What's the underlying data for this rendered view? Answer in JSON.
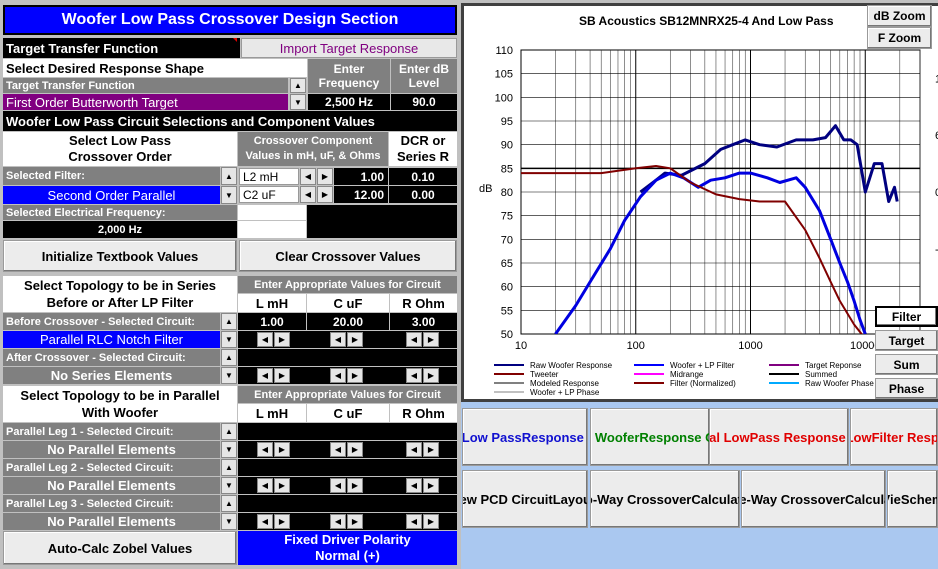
{
  "title": "Woofer Low Pass Crossover Design Section",
  "ttf_label": "Target Transfer Function",
  "import_btn": "Import Target Response",
  "shape_label": "Select Desired Response Shape",
  "enter_freq": [
    "Enter",
    "Frequency"
  ],
  "enter_db": [
    "Enter dB",
    "Level"
  ],
  "ttf_small": "Target Transfer Function",
  "target_name": "First Order Butterworth Target",
  "freq_value": "2,500 Hz",
  "db_value": "90.0",
  "circuit_section": "Woofer Low Pass Circuit Selections and Component Values",
  "lp_order": [
    "Select Low Pass",
    "Crossover Order"
  ],
  "comp_values": [
    "Crossover Component",
    "Values in mH, uF, & Ohms"
  ],
  "dcr": [
    "DCR or",
    "Series R"
  ],
  "selected_filter_label": "Selected Filter:",
  "filter_name": "Second Order Parallel",
  "components": [
    {
      "name": "L2 mH",
      "value": "1.00",
      "dcr": "0.10"
    },
    {
      "name": "C2 uF",
      "value": "12.00",
      "dcr": "0.00"
    }
  ],
  "elec_freq_label": "Selected Electrical Frequency:",
  "elec_freq": "2,000 Hz",
  "init_btn": "Initialize Textbook Values",
  "clear_btn": "Clear Crossover  Values",
  "topo_series": [
    "Select Topology to be in Series",
    "Before or After LP Filter"
  ],
  "enter_circuit": "Enter Appropriate Values for Circuit",
  "col_l": "L mH",
  "col_c": "C uF",
  "col_r": "R Ohm",
  "before_label": "Before Crossover - Selected Circuit:",
  "before_values": [
    "1.00",
    "20.00",
    "3.00"
  ],
  "before_circuit": "Parallel RLC Notch Filter",
  "after_label": "After Crossover - Selected Circuit:",
  "after_circuit": "No Series Elements",
  "topo_parallel": [
    "Select Topology to be in Parallel",
    "With Woofer"
  ],
  "enter_circuit2": "Enter Appropriate Values for Circuit",
  "legs": [
    {
      "label": "Parallel Leg 1 - Selected Circuit:",
      "value": "No Parallel Elements"
    },
    {
      "label": "Parallel Leg 2 - Selected Circuit:",
      "value": "No Parallel Elements"
    },
    {
      "label": "Parallel Leg 3 - Selected Circuit:",
      "value": "No Parallel Elements"
    }
  ],
  "zobel_btn": "Auto-Calc Zobel Values",
  "polarity": [
    "Fixed Driver Polarity",
    "Normal (+)"
  ],
  "chart_title": "SB Acoustics   SB12MNRX25-4   And  Low Pass",
  "db_zoom": "dB Zoom",
  "f_zoom": "F Zoom",
  "right_btns": [
    "Filter",
    "Target",
    "Sum",
    "Phase"
  ],
  "bottom_btns": [
    {
      "t": [
        "Print Low Pass",
        "Response  Chart"
      ],
      "color": "#1010d0"
    },
    {
      "t": [
        "Save Woofer",
        "Response  Chart"
      ],
      "color": "#008000"
    },
    {
      "t": [
        "Output Total  Low",
        "Pass Response  to",
        "FRD File"
      ],
      "color": "#e00000"
    },
    {
      "t": [
        "Output Low",
        "Filter Respo",
        "FRD Fi"
      ],
      "color": "#e00000"
    },
    {
      "t": [
        "View PCD Circuit",
        "Layouts"
      ],
      "color": "#000000"
    },
    {
      "t": [
        "Two-Way Crossover",
        "Calculators"
      ],
      "color": "#000000"
    },
    {
      "t": [
        "Three-Way Crossover",
        "Calculators"
      ],
      "color": "#000000"
    },
    {
      "t": [
        "Vie",
        "Schem"
      ],
      "color": "#000000"
    }
  ],
  "chart_data": {
    "type": "line",
    "title": "SB Acoustics   SB12MNRX25-4   And  Low Pass",
    "xlabel": "",
    "ylabel": "dB",
    "y2label": "Phase",
    "xscale": "log",
    "xlim": [
      10,
      30000
    ],
    "ylim": [
      50,
      110
    ],
    "y2lim": [
      -150,
      150
    ],
    "xticks": [
      "10",
      "100",
      "1000",
      "10000"
    ],
    "yticks": [
      "50",
      "55",
      "60",
      "65",
      "70",
      "75",
      "80",
      "85",
      "90",
      "95",
      "100",
      "105",
      "110"
    ],
    "y2ticks": [
      "120",
      "60",
      "0",
      "-60",
      "-120"
    ],
    "target_line": 85,
    "series": [
      {
        "name": "Raw Woofer Response",
        "color": "#000080",
        "width": 3,
        "x": [
          110,
          150,
          180,
          250,
          400,
          550,
          700,
          900,
          1200,
          1700,
          2500,
          3500,
          4500,
          5500,
          6500,
          7500,
          8500,
          10000,
          12000,
          14000,
          16000,
          18000,
          19000
        ],
        "y": [
          80,
          82.5,
          84,
          83.5,
          86,
          89,
          90,
          91,
          90,
          89.5,
          91,
          91,
          91.5,
          94,
          91,
          91,
          90,
          80,
          86,
          86,
          78,
          81,
          78
        ]
      },
      {
        "name": "Woofer + LP Filter",
        "color": "#0000e0",
        "width": 3,
        "x": [
          20,
          30,
          40,
          60,
          80,
          110,
          150,
          200,
          260,
          350,
          450,
          600,
          800,
          1000,
          1400,
          1800,
          2500,
          3000,
          4000,
          5000,
          6000,
          7000,
          8000,
          9000,
          10000
        ],
        "y": [
          50,
          56,
          61,
          68,
          74,
          79,
          82.5,
          84,
          83,
          81,
          82.5,
          83,
          84,
          84,
          83,
          82,
          83,
          81,
          76,
          70,
          65,
          61,
          57,
          53,
          50
        ]
      },
      {
        "name": "Filter (Normalized)",
        "color": "#800000",
        "width": 2,
        "x": [
          10,
          20,
          50,
          100,
          150,
          200,
          300,
          500,
          800,
          1200,
          2000,
          3000,
          4000,
          5000,
          6000,
          8000,
          10000
        ],
        "y": [
          84,
          84,
          84,
          85,
          85.5,
          85,
          82,
          79.5,
          78.5,
          78,
          78,
          72,
          66,
          61,
          57,
          52,
          49
        ]
      }
    ]
  },
  "legend": [
    {
      "name": "Raw Woofer Response",
      "color": "#000080"
    },
    {
      "name": "Woofer + LP Filter",
      "color": "#0000ff"
    },
    {
      "name": "Target Reponse",
      "color": "#800080"
    },
    {
      "name": "Tweeter",
      "color": "#800000"
    },
    {
      "name": "Midrange",
      "color": "#ff00ff"
    },
    {
      "name": "Summed",
      "color": "#000000"
    },
    {
      "name": "Modeled Response",
      "color": "#808080"
    },
    {
      "name": "Filter (Normalized)",
      "color": "#800000"
    },
    {
      "name": "Raw Woofer Phase",
      "color": "#00aaff"
    },
    {
      "name": "Woofer + LP  Phase",
      "color": "#c0c0c0"
    }
  ]
}
